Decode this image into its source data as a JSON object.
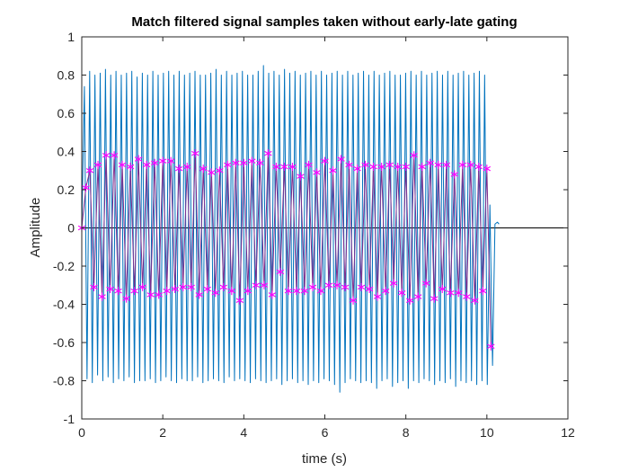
{
  "chart_data": {
    "type": "line",
    "title": "Match filtered signal samples taken without early-late gating",
    "xlabel": "time (s)",
    "ylabel": "Amplitude",
    "xlim": [
      0,
      12
    ],
    "ylim": [
      -1,
      1
    ],
    "x_ticks": [
      "0",
      "2",
      "4",
      "6",
      "8",
      "10",
      "12"
    ],
    "y_ticks": [
      "1",
      "0.8",
      "0.6",
      "0.4",
      "0.2",
      "0",
      "-0.2",
      "-0.4",
      "-0.6",
      "-0.8",
      "-1"
    ],
    "grid": false,
    "zero_line": true,
    "series": [
      {
        "style": "line",
        "color": "#0072BD",
        "x": [
          0,
          0.065,
          0.13,
          0.195,
          0.26,
          0.325,
          0.39,
          0.455,
          0.52,
          0.585,
          0.65,
          0.715,
          0.78,
          0.845,
          0.91,
          0.975,
          1.04,
          1.105,
          1.17,
          1.235,
          1.3,
          1.365,
          1.43,
          1.495,
          1.56,
          1.625,
          1.69,
          1.755,
          1.82,
          1.885,
          1.95,
          2.015,
          2.08,
          2.145,
          2.21,
          2.275,
          2.34,
          2.405,
          2.47,
          2.535,
          2.6,
          2.665,
          2.73,
          2.795,
          2.86,
          2.925,
          2.99,
          3.055,
          3.12,
          3.185,
          3.25,
          3.315,
          3.38,
          3.445,
          3.51,
          3.575,
          3.64,
          3.705,
          3.77,
          3.835,
          3.9,
          3.965,
          4.03,
          4.095,
          4.16,
          4.225,
          4.29,
          4.355,
          4.42,
          4.485,
          4.55,
          4.615,
          4.68,
          4.745,
          4.81,
          4.875,
          4.94,
          5.005,
          5.07,
          5.135,
          5.2,
          5.265,
          5.33,
          5.395,
          5.46,
          5.525,
          5.59,
          5.655,
          5.72,
          5.785,
          5.85,
          5.915,
          5.98,
          6.045,
          6.11,
          6.175,
          6.24,
          6.305,
          6.37,
          6.435,
          6.5,
          6.565,
          6.63,
          6.695,
          6.76,
          6.825,
          6.89,
          6.955,
          7.02,
          7.085,
          7.15,
          7.215,
          7.28,
          7.345,
          7.41,
          7.475,
          7.54,
          7.605,
          7.67,
          7.735,
          7.8,
          7.865,
          7.93,
          7.995,
          8.06,
          8.125,
          8.19,
          8.255,
          8.32,
          8.385,
          8.45,
          8.515,
          8.58,
          8.645,
          8.71,
          8.775,
          8.84,
          8.905,
          8.97,
          9.035,
          9.1,
          9.165,
          9.23,
          9.295,
          9.36,
          9.425,
          9.49,
          9.555,
          9.62,
          9.685,
          9.75,
          9.815,
          9.88,
          9.945,
          10.01,
          10.075,
          10.14,
          10.2,
          10.26,
          10.3
        ],
        "y": [
          0,
          0.74,
          -0.79,
          0.82,
          -0.81,
          0.8,
          -0.77,
          0.81,
          -0.8,
          0.83,
          -0.78,
          0.8,
          -0.81,
          0.82,
          -0.79,
          0.8,
          -0.8,
          0.81,
          -0.78,
          0.82,
          -0.81,
          0.79,
          -0.8,
          0.81,
          -0.8,
          0.8,
          -0.79,
          0.82,
          -0.81,
          0.8,
          -0.8,
          0.81,
          -0.78,
          0.82,
          -0.8,
          0.8,
          -0.81,
          0.82,
          -0.79,
          0.8,
          -0.8,
          0.81,
          -0.8,
          0.82,
          -0.78,
          0.8,
          -0.81,
          0.8,
          -0.8,
          0.81,
          -0.79,
          0.83,
          -0.8,
          0.8,
          -0.81,
          0.82,
          -0.78,
          0.8,
          -0.8,
          0.81,
          -0.79,
          0.82,
          -0.8,
          0.8,
          -0.81,
          0.8,
          -0.79,
          0.82,
          -0.8,
          0.85,
          -0.81,
          0.81,
          -0.8,
          0.82,
          -0.79,
          0.8,
          -0.82,
          0.83,
          -0.8,
          0.81,
          -0.79,
          0.82,
          -0.81,
          0.8,
          -0.8,
          0.81,
          -0.82,
          0.82,
          -0.8,
          0.8,
          -0.81,
          0.82,
          -0.79,
          0.8,
          -0.8,
          0.81,
          -0.82,
          0.82,
          -0.86,
          0.8,
          -0.81,
          0.82,
          -0.79,
          0.8,
          -0.8,
          0.81,
          -0.81,
          0.82,
          -0.8,
          0.8,
          -0.81,
          0.82,
          -0.84,
          0.8,
          -0.8,
          0.81,
          -0.79,
          0.82,
          -0.83,
          0.8,
          -0.81,
          0.8,
          -0.8,
          0.81,
          -0.84,
          0.82,
          -0.8,
          0.8,
          -0.81,
          0.82,
          -0.79,
          0.8,
          -0.8,
          0.81,
          -0.82,
          0.82,
          -0.8,
          0.8,
          -0.81,
          0.82,
          -0.79,
          0.8,
          -0.83,
          0.81,
          -0.8,
          0.82,
          -0.81,
          0.8,
          -0.8,
          0.81,
          -0.82,
          0.82,
          -0.8,
          0.8,
          -0.82,
          0.12,
          -0.72,
          0.02,
          0.03,
          0.02
        ]
      },
      {
        "style": "line+marker",
        "marker": "asterisk",
        "color": "#FF00FF",
        "line_color": "#7E2F8E",
        "x": [
          0,
          0.1,
          0.2,
          0.3,
          0.4,
          0.5,
          0.6,
          0.7,
          0.8,
          0.9,
          1.0,
          1.1,
          1.2,
          1.3,
          1.4,
          1.5,
          1.6,
          1.7,
          1.8,
          1.9,
          2.0,
          2.1,
          2.2,
          2.3,
          2.4,
          2.5,
          2.6,
          2.7,
          2.8,
          2.9,
          3.0,
          3.1,
          3.2,
          3.3,
          3.4,
          3.5,
          3.6,
          3.7,
          3.8,
          3.9,
          4.0,
          4.1,
          4.2,
          4.3,
          4.4,
          4.5,
          4.6,
          4.7,
          4.8,
          4.9,
          5.0,
          5.1,
          5.2,
          5.3,
          5.4,
          5.5,
          5.6,
          5.7,
          5.8,
          5.9,
          6.0,
          6.1,
          6.2,
          6.3,
          6.4,
          6.5,
          6.6,
          6.7,
          6.8,
          6.9,
          7.0,
          7.1,
          7.2,
          7.3,
          7.4,
          7.5,
          7.6,
          7.7,
          7.8,
          7.9,
          8.0,
          8.1,
          8.2,
          8.3,
          8.4,
          8.5,
          8.6,
          8.7,
          8.8,
          8.9,
          9.0,
          9.1,
          9.2,
          9.3,
          9.4,
          9.5,
          9.6,
          9.7,
          9.8,
          9.9,
          10.0,
          10.1
        ],
        "y": [
          0,
          0.21,
          0.3,
          -0.31,
          0.33,
          -0.36,
          0.38,
          -0.32,
          0.38,
          -0.33,
          0.33,
          -0.37,
          0.32,
          -0.33,
          0.36,
          -0.31,
          0.33,
          -0.35,
          0.34,
          -0.35,
          0.35,
          -0.33,
          0.35,
          -0.32,
          0.31,
          -0.31,
          0.32,
          -0.31,
          0.39,
          -0.35,
          0.31,
          -0.32,
          0.29,
          -0.34,
          0.3,
          -0.31,
          0.33,
          -0.33,
          0.34,
          -0.38,
          0.34,
          -0.33,
          0.35,
          -0.3,
          0.34,
          -0.3,
          0.39,
          -0.35,
          0.32,
          -0.23,
          0.32,
          -0.33,
          0.32,
          -0.33,
          0.27,
          -0.33,
          0.33,
          -0.31,
          0.29,
          -0.33,
          0.35,
          -0.3,
          0.3,
          -0.3,
          0.36,
          -0.31,
          0.33,
          -0.38,
          0.31,
          -0.31,
          0.33,
          -0.32,
          0.32,
          -0.36,
          0.32,
          -0.33,
          0.33,
          -0.29,
          0.32,
          -0.34,
          0.32,
          -0.38,
          0.38,
          -0.36,
          0.32,
          -0.29,
          0.34,
          -0.37,
          0.33,
          -0.32,
          0.33,
          -0.34,
          0.28,
          -0.34,
          0.33,
          -0.36,
          0.33,
          -0.38,
          0.32,
          -0.33,
          0.31,
          -0.62
        ]
      }
    ]
  },
  "colors": {
    "axes": "#262626",
    "zero_line": "#000000"
  }
}
